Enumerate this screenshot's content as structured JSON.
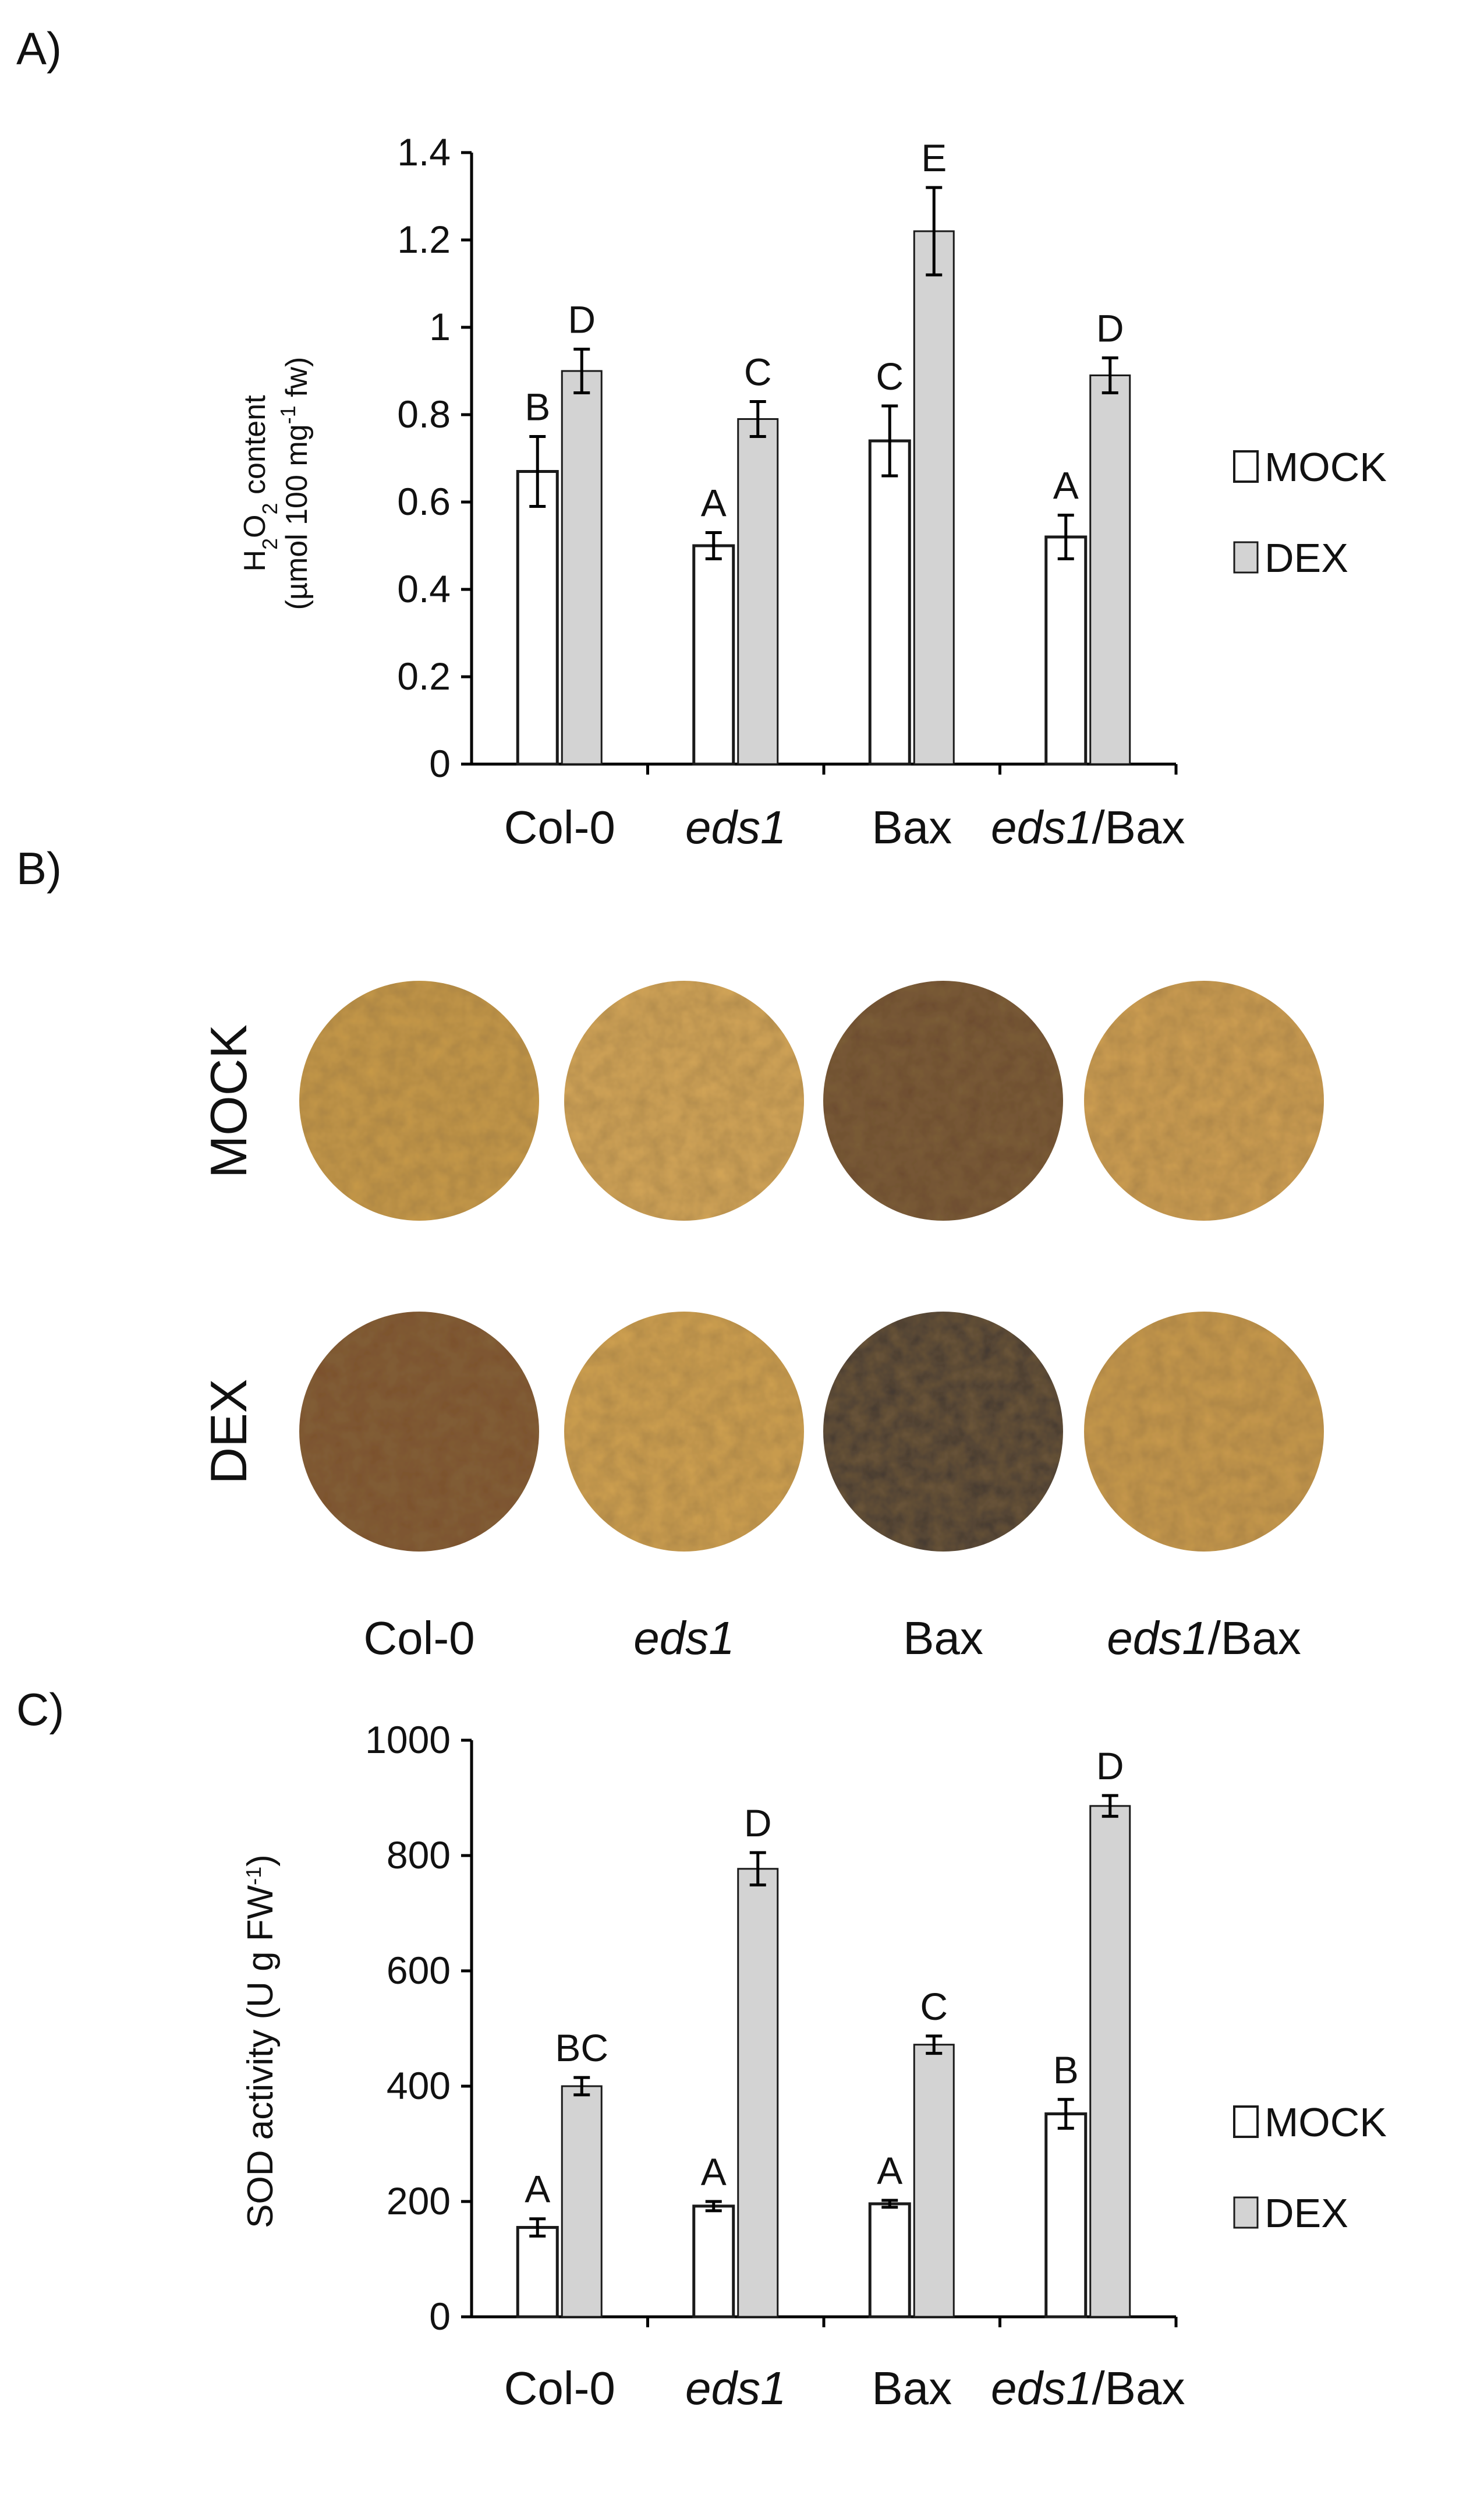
{
  "colors": {
    "mock_fill": "#ffffff",
    "dex_fill": "#d3d3d3",
    "bar_stroke": "#1a1a1a",
    "axis": "#000000"
  },
  "panel_a": {
    "letter": "A)",
    "ylabel_line1": "H2O2 content",
    "ylabel_line2": "(µmol 100 mg-1 fw)",
    "legend": [
      "MOCK",
      "DEX"
    ],
    "chart_data": {
      "type": "bar",
      "categories": [
        "Col-0",
        "eds1",
        "Bax",
        "eds1/Bax"
      ],
      "categories_italic_part": [
        "",
        "eds1",
        "",
        "eds1"
      ],
      "ylim": [
        0,
        1.4
      ],
      "yticks": [
        "0",
        "0.2",
        "0.4",
        "0.6",
        "0.8",
        "1",
        "1.2",
        "1.4"
      ],
      "series": [
        {
          "name": "MOCK",
          "values": [
            0.67,
            0.5,
            0.74,
            0.52
          ],
          "errors": [
            0.08,
            0.03,
            0.08,
            0.05
          ],
          "letters": [
            "B",
            "A",
            "C",
            "A"
          ]
        },
        {
          "name": "DEX",
          "values": [
            0.9,
            0.79,
            1.22,
            0.89
          ],
          "errors": [
            0.05,
            0.04,
            0.1,
            0.04
          ],
          "letters": [
            "D",
            "C",
            "E",
            "D"
          ]
        }
      ]
    }
  },
  "panel_b": {
    "letter": "B)",
    "rows": [
      "MOCK",
      "DEX"
    ],
    "columns": [
      "Col-0",
      "eds1",
      "Bax",
      "eds1/Bax"
    ],
    "stain_colors": [
      [
        "#c89a48",
        "#d4a658",
        "#6b4a2e",
        "#cf9f52"
      ],
      [
        "#7a4f2c",
        "#d0a150",
        "#3e3530",
        "#c99a4c"
      ]
    ]
  },
  "panel_c": {
    "letter": "C)",
    "ylabel": "SOD activity (U g FW-1)",
    "legend": [
      "MOCK",
      "DEX"
    ],
    "chart_data": {
      "type": "bar",
      "categories": [
        "Col-0",
        "eds1",
        "Bax",
        "eds1/Bax"
      ],
      "ylim": [
        0,
        1000
      ],
      "yticks": [
        "0",
        "200",
        "400",
        "600",
        "800",
        "1000"
      ],
      "series": [
        {
          "name": "MOCK",
          "values": [
            155,
            192,
            196,
            352
          ],
          "errors": [
            15,
            8,
            6,
            25
          ],
          "letters": [
            "A",
            "A",
            "A",
            "B"
          ]
        },
        {
          "name": "DEX",
          "values": [
            400,
            777,
            472,
            886
          ],
          "errors": [
            15,
            28,
            15,
            18
          ],
          "letters": [
            "BC",
            "D",
            "C",
            "D"
          ]
        }
      ]
    }
  }
}
